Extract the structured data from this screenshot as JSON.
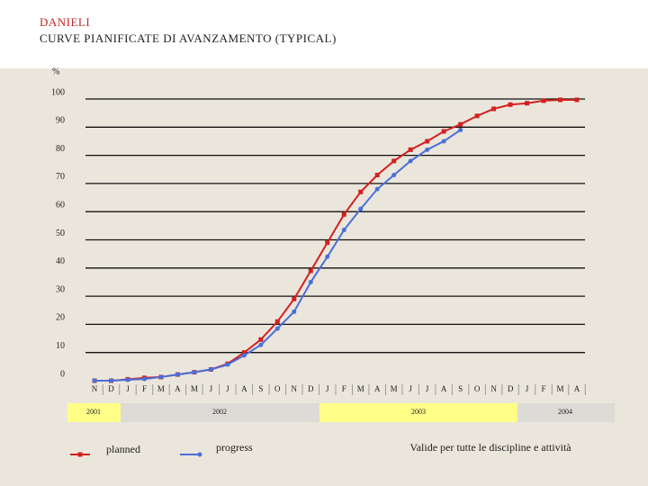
{
  "chart_data": {
    "type": "line",
    "brand": "DANIELI",
    "title": "CURVE PIANIFICATE DI AVANZAMENTO (TYPICAL)",
    "y_label": "%",
    "categories": [
      "N",
      "D",
      "J",
      "F",
      "M",
      "A",
      "M",
      "J",
      "J",
      "A",
      "S",
      "O",
      "N",
      "D",
      "J",
      "F",
      "M",
      "A",
      "M",
      "J",
      "J",
      "A",
      "S",
      "O",
      "N",
      "D",
      "J",
      "F",
      "M",
      "A"
    ],
    "years": [
      "2001",
      "2002",
      "2003",
      "2004"
    ],
    "series": [
      {
        "name": "planned",
        "color": "#d42020",
        "marker": "square",
        "values": [
          0,
          0,
          0.5,
          1,
          1.3,
          2.2,
          3,
          4,
          6,
          10,
          14.6,
          21,
          29,
          39,
          49,
          59,
          67,
          73,
          78,
          82,
          85,
          88.5,
          91,
          94,
          96.5,
          98,
          98.5,
          99.4,
          99.7,
          99.7
        ]
      },
      {
        "name": "progress",
        "color": "#4a6fd8",
        "marker": "circle",
        "values": [
          0,
          0,
          0.3,
          0.6,
          1.3,
          2.2,
          3,
          4,
          5.7,
          9,
          12.7,
          18.5,
          24.5,
          35,
          44,
          53.5,
          61,
          68,
          73,
          78,
          82,
          85,
          89,
          null,
          null,
          null,
          null,
          null,
          null,
          null
        ]
      }
    ],
    "ylim": [
      0,
      100
    ],
    "yticks": [
      0,
      10,
      20,
      30,
      40,
      50,
      60,
      70,
      80,
      90,
      100
    ],
    "grid": true,
    "note": "Valide per tutte le discipline e attività"
  }
}
